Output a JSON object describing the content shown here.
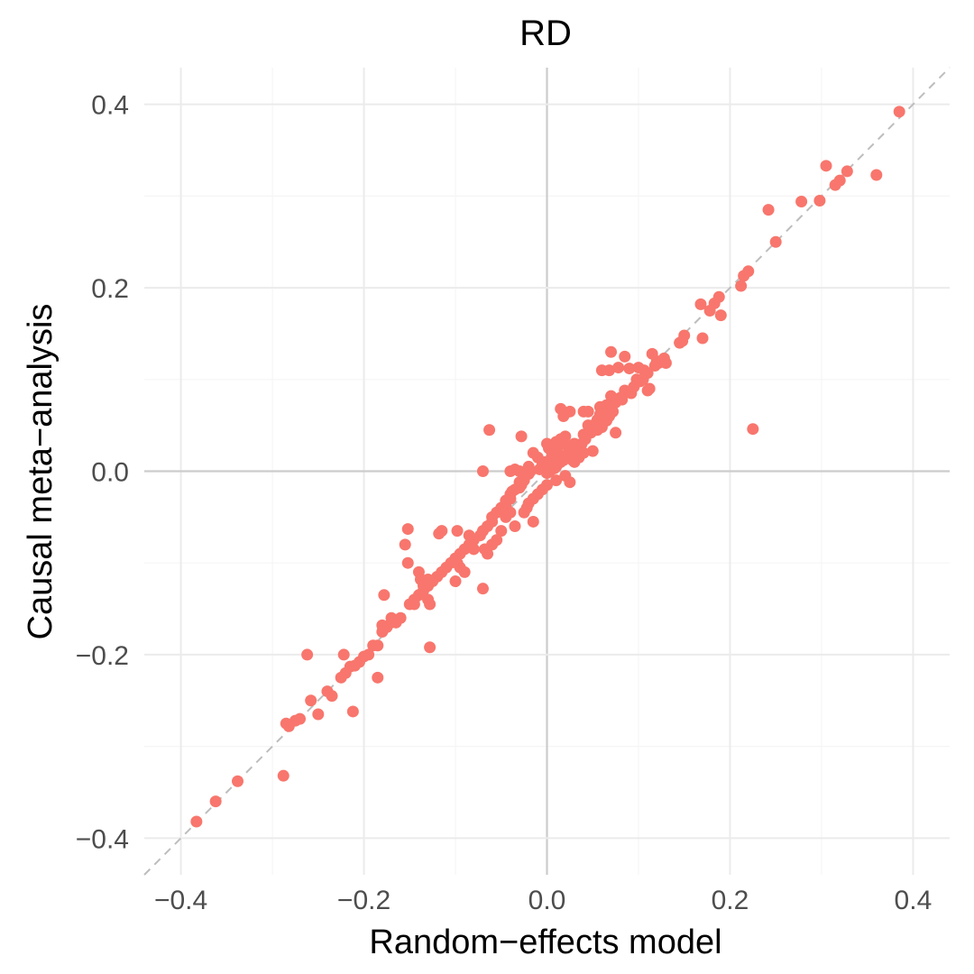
{
  "chart_data": {
    "type": "scatter",
    "title": "RD",
    "xlabel": "Random−effects model",
    "ylabel": "Causal meta−analysis",
    "xlim": [
      -0.44,
      0.44
    ],
    "ylim": [
      -0.44,
      0.44
    ],
    "x_ticks": [
      -0.4,
      -0.2,
      0.0,
      0.2,
      0.4
    ],
    "y_ticks": [
      -0.4,
      -0.2,
      0.0,
      0.2,
      0.4
    ],
    "x_tick_labels": [
      "−0.4",
      "−0.2",
      "0.0",
      "0.2",
      "0.4"
    ],
    "y_tick_labels": [
      "−0.4",
      "−0.2",
      "0.0",
      "0.2",
      "0.4"
    ],
    "grid": true,
    "reference_line": {
      "style": "dashed",
      "slope": 1,
      "intercept": 0
    },
    "colors": {
      "points": "#F8766D",
      "reference": "#bdbdbd",
      "grid_major": "#ebebeb",
      "zero_line": "#cccccc"
    },
    "points": [
      [
        0.385,
        0.392
      ],
      [
        0.305,
        0.333
      ],
      [
        0.328,
        0.327
      ],
      [
        0.36,
        0.323
      ],
      [
        0.315,
        0.312
      ],
      [
        0.32,
        0.317
      ],
      [
        0.278,
        0.294
      ],
      [
        0.298,
        0.295
      ],
      [
        0.242,
        0.285
      ],
      [
        0.25,
        0.25
      ],
      [
        0.22,
        0.218
      ],
      [
        0.215,
        0.213
      ],
      [
        0.212,
        0.202
      ],
      [
        0.188,
        0.19
      ],
      [
        0.183,
        0.183
      ],
      [
        0.178,
        0.175
      ],
      [
        0.168,
        0.182
      ],
      [
        0.19,
        0.17
      ],
      [
        0.17,
        0.145
      ],
      [
        0.15,
        0.148
      ],
      [
        0.148,
        0.142
      ],
      [
        0.145,
        0.14
      ],
      [
        0.225,
        0.046
      ],
      [
        0.115,
        0.128
      ],
      [
        0.128,
        0.123
      ],
      [
        0.13,
        0.118
      ],
      [
        0.12,
        0.12
      ],
      [
        0.07,
        0.13
      ],
      [
        0.085,
        0.125
      ],
      [
        0.09,
        0.112
      ],
      [
        0.078,
        0.113
      ],
      [
        0.06,
        0.11
      ],
      [
        0.068,
        0.11
      ],
      [
        0.1,
        0.113
      ],
      [
        0.106,
        0.11
      ],
      [
        0.11,
        0.107
      ],
      [
        0.098,
        0.1
      ],
      [
        0.112,
        0.09
      ],
      [
        0.11,
        0.088
      ],
      [
        0.085,
        0.088
      ],
      [
        0.092,
        0.085
      ],
      [
        0.07,
        0.082
      ],
      [
        0.08,
        0.08
      ],
      [
        0.075,
        0.075
      ],
      [
        0.065,
        0.072
      ],
      [
        0.07,
        0.068
      ],
      [
        0.058,
        0.07
      ],
      [
        0.058,
        0.062
      ],
      [
        0.062,
        0.06
      ],
      [
        0.055,
        0.056
      ],
      [
        0.05,
        0.05
      ],
      [
        0.045,
        0.05
      ],
      [
        0.048,
        0.042
      ],
      [
        0.04,
        0.04
      ],
      [
        0.042,
        0.035
      ],
      [
        0.038,
        0.03
      ],
      [
        0.035,
        0.028
      ],
      [
        0.032,
        0.022
      ],
      [
        0.028,
        0.025
      ],
      [
        0.025,
        0.02
      ],
      [
        0.022,
        0.018
      ],
      [
        0.02,
        0.015
      ],
      [
        0.018,
        0.012
      ],
      [
        0.015,
        0.01
      ],
      [
        0.012,
        0.008
      ],
      [
        0.01,
        0.005
      ],
      [
        0.008,
        0.003
      ],
      [
        0.005,
        0.002
      ],
      [
        0.003,
        0.0
      ],
      [
        0.0,
        -0.002
      ],
      [
        0.04,
        0.065
      ],
      [
        0.045,
        0.065
      ],
      [
        0.025,
        0.065
      ],
      [
        0.018,
        0.06
      ],
      [
        0.015,
        0.068
      ],
      [
        0.075,
        0.042
      ],
      [
        0.05,
        0.022
      ],
      [
        0.03,
        0.03
      ],
      [
        0.012,
        0.02
      ],
      [
        0.005,
        0.022
      ],
      [
        0.002,
        0.025
      ],
      [
        0.0,
        0.03
      ],
      [
        0.01,
        0.032
      ],
      [
        0.015,
        0.035
      ],
      [
        0.02,
        0.038
      ],
      [
        0.005,
        0.01
      ],
      [
        -0.005,
        0.008
      ],
      [
        -0.01,
        0.015
      ],
      [
        -0.015,
        0.02
      ],
      [
        -0.02,
        0.005
      ],
      [
        -0.03,
        0.0
      ],
      [
        -0.035,
        0.002
      ],
      [
        -0.04,
        0.0
      ],
      [
        -0.028,
        0.038
      ],
      [
        -0.07,
        0.0
      ],
      [
        -0.063,
        0.045
      ],
      [
        -0.018,
        0.0
      ],
      [
        -0.02,
        -0.003
      ],
      [
        -0.025,
        -0.005
      ],
      [
        -0.025,
        -0.01
      ],
      [
        -0.03,
        -0.012
      ],
      [
        -0.028,
        -0.015
      ],
      [
        -0.03,
        -0.018
      ],
      [
        -0.035,
        -0.02
      ],
      [
        -0.038,
        -0.022
      ],
      [
        -0.04,
        -0.025
      ],
      [
        -0.04,
        -0.03
      ],
      [
        -0.045,
        -0.032
      ],
      [
        -0.045,
        -0.038
      ],
      [
        -0.05,
        -0.04
      ],
      [
        -0.055,
        -0.045
      ],
      [
        -0.06,
        -0.05
      ],
      [
        -0.06,
        -0.055
      ],
      [
        -0.065,
        -0.06
      ],
      [
        -0.07,
        -0.065
      ],
      [
        -0.073,
        -0.07
      ],
      [
        -0.08,
        -0.075
      ],
      [
        -0.085,
        -0.08
      ],
      [
        -0.09,
        -0.085
      ],
      [
        -0.095,
        -0.09
      ],
      [
        -0.1,
        -0.095
      ],
      [
        -0.105,
        -0.1
      ],
      [
        -0.11,
        -0.105
      ],
      [
        -0.115,
        -0.11
      ],
      [
        -0.12,
        -0.115
      ],
      [
        -0.125,
        -0.12
      ],
      [
        -0.13,
        -0.125
      ],
      [
        -0.135,
        -0.13
      ],
      [
        -0.14,
        -0.135
      ],
      [
        -0.145,
        -0.14
      ],
      [
        -0.15,
        -0.145
      ],
      [
        0.0,
        -0.015
      ],
      [
        0.01,
        -0.01
      ],
      [
        0.02,
        -0.005
      ],
      [
        0.025,
        -0.012
      ],
      [
        -0.005,
        -0.02
      ],
      [
        -0.01,
        -0.025
      ],
      [
        -0.015,
        -0.03
      ],
      [
        -0.02,
        -0.035
      ],
      [
        -0.022,
        -0.04
      ],
      [
        -0.025,
        -0.045
      ],
      [
        -0.015,
        -0.055
      ],
      [
        -0.035,
        -0.06
      ],
      [
        -0.045,
        -0.05
      ],
      [
        -0.05,
        -0.065
      ],
      [
        -0.055,
        -0.075
      ],
      [
        -0.06,
        -0.08
      ],
      [
        -0.065,
        -0.09
      ],
      [
        -0.068,
        -0.085
      ],
      [
        -0.07,
        -0.128
      ],
      [
        -0.09,
        -0.11
      ],
      [
        -0.095,
        -0.105
      ],
      [
        -0.1,
        -0.12
      ],
      [
        -0.098,
        -0.1
      ],
      [
        -0.1,
        -0.095
      ],
      [
        -0.085,
        -0.07
      ],
      [
        -0.098,
        -0.065
      ],
      [
        -0.115,
        -0.065
      ],
      [
        -0.118,
        -0.068
      ],
      [
        -0.152,
        -0.063
      ],
      [
        -0.155,
        -0.08
      ],
      [
        -0.152,
        -0.1
      ],
      [
        -0.14,
        -0.11
      ],
      [
        -0.138,
        -0.118
      ],
      [
        -0.13,
        -0.118
      ],
      [
        -0.13,
        -0.14
      ],
      [
        -0.128,
        -0.145
      ],
      [
        -0.135,
        -0.125
      ],
      [
        -0.145,
        -0.145
      ],
      [
        -0.16,
        -0.16
      ],
      [
        -0.165,
        -0.165
      ],
      [
        -0.17,
        -0.165
      ],
      [
        -0.175,
        -0.17
      ],
      [
        -0.18,
        -0.168
      ],
      [
        -0.178,
        -0.135
      ],
      [
        -0.185,
        -0.19
      ],
      [
        -0.19,
        -0.19
      ],
      [
        -0.195,
        -0.2
      ],
      [
        -0.2,
        -0.202
      ],
      [
        -0.205,
        -0.208
      ],
      [
        -0.21,
        -0.212
      ],
      [
        -0.215,
        -0.213
      ],
      [
        -0.22,
        -0.22
      ],
      [
        -0.225,
        -0.225
      ],
      [
        -0.222,
        -0.2
      ],
      [
        -0.185,
        -0.225
      ],
      [
        -0.128,
        -0.192
      ],
      [
        -0.262,
        -0.2
      ],
      [
        -0.212,
        -0.262
      ],
      [
        -0.235,
        -0.245
      ],
      [
        -0.24,
        -0.24
      ],
      [
        -0.25,
        -0.265
      ],
      [
        -0.258,
        -0.25
      ],
      [
        -0.27,
        -0.27
      ],
      [
        -0.275,
        -0.272
      ],
      [
        -0.282,
        -0.278
      ],
      [
        -0.285,
        -0.275
      ],
      [
        -0.288,
        -0.332
      ],
      [
        -0.338,
        -0.338
      ],
      [
        -0.362,
        -0.36
      ],
      [
        -0.383,
        -0.382
      ],
      [
        -0.18,
        -0.175
      ],
      [
        -0.17,
        -0.16
      ],
      [
        -0.08,
        -0.085
      ],
      [
        -0.05,
        -0.04
      ],
      [
        -0.04,
        -0.045
      ],
      [
        0.03,
        0.01
      ],
      [
        0.035,
        0.015
      ],
      [
        0.04,
        0.02
      ],
      [
        0.028,
        0.012
      ],
      [
        0.022,
        0.028
      ],
      [
        0.016,
        0.03
      ],
      [
        0.008,
        0.028
      ],
      [
        0.005,
        0.015
      ],
      [
        -0.002,
        0.01
      ],
      [
        -0.008,
        0.002
      ],
      [
        0.055,
        0.045
      ],
      [
        0.06,
        0.048
      ],
      [
        0.065,
        0.055
      ],
      [
        0.068,
        0.06
      ],
      [
        0.072,
        0.065
      ],
      [
        0.082,
        0.078
      ],
      [
        0.095,
        0.092
      ],
      [
        0.102,
        0.098
      ],
      [
        0.105,
        0.1
      ],
      [
        0.118,
        0.115
      ],
      [
        0.122,
        0.118
      ],
      [
        0.125,
        0.12
      ]
    ]
  }
}
